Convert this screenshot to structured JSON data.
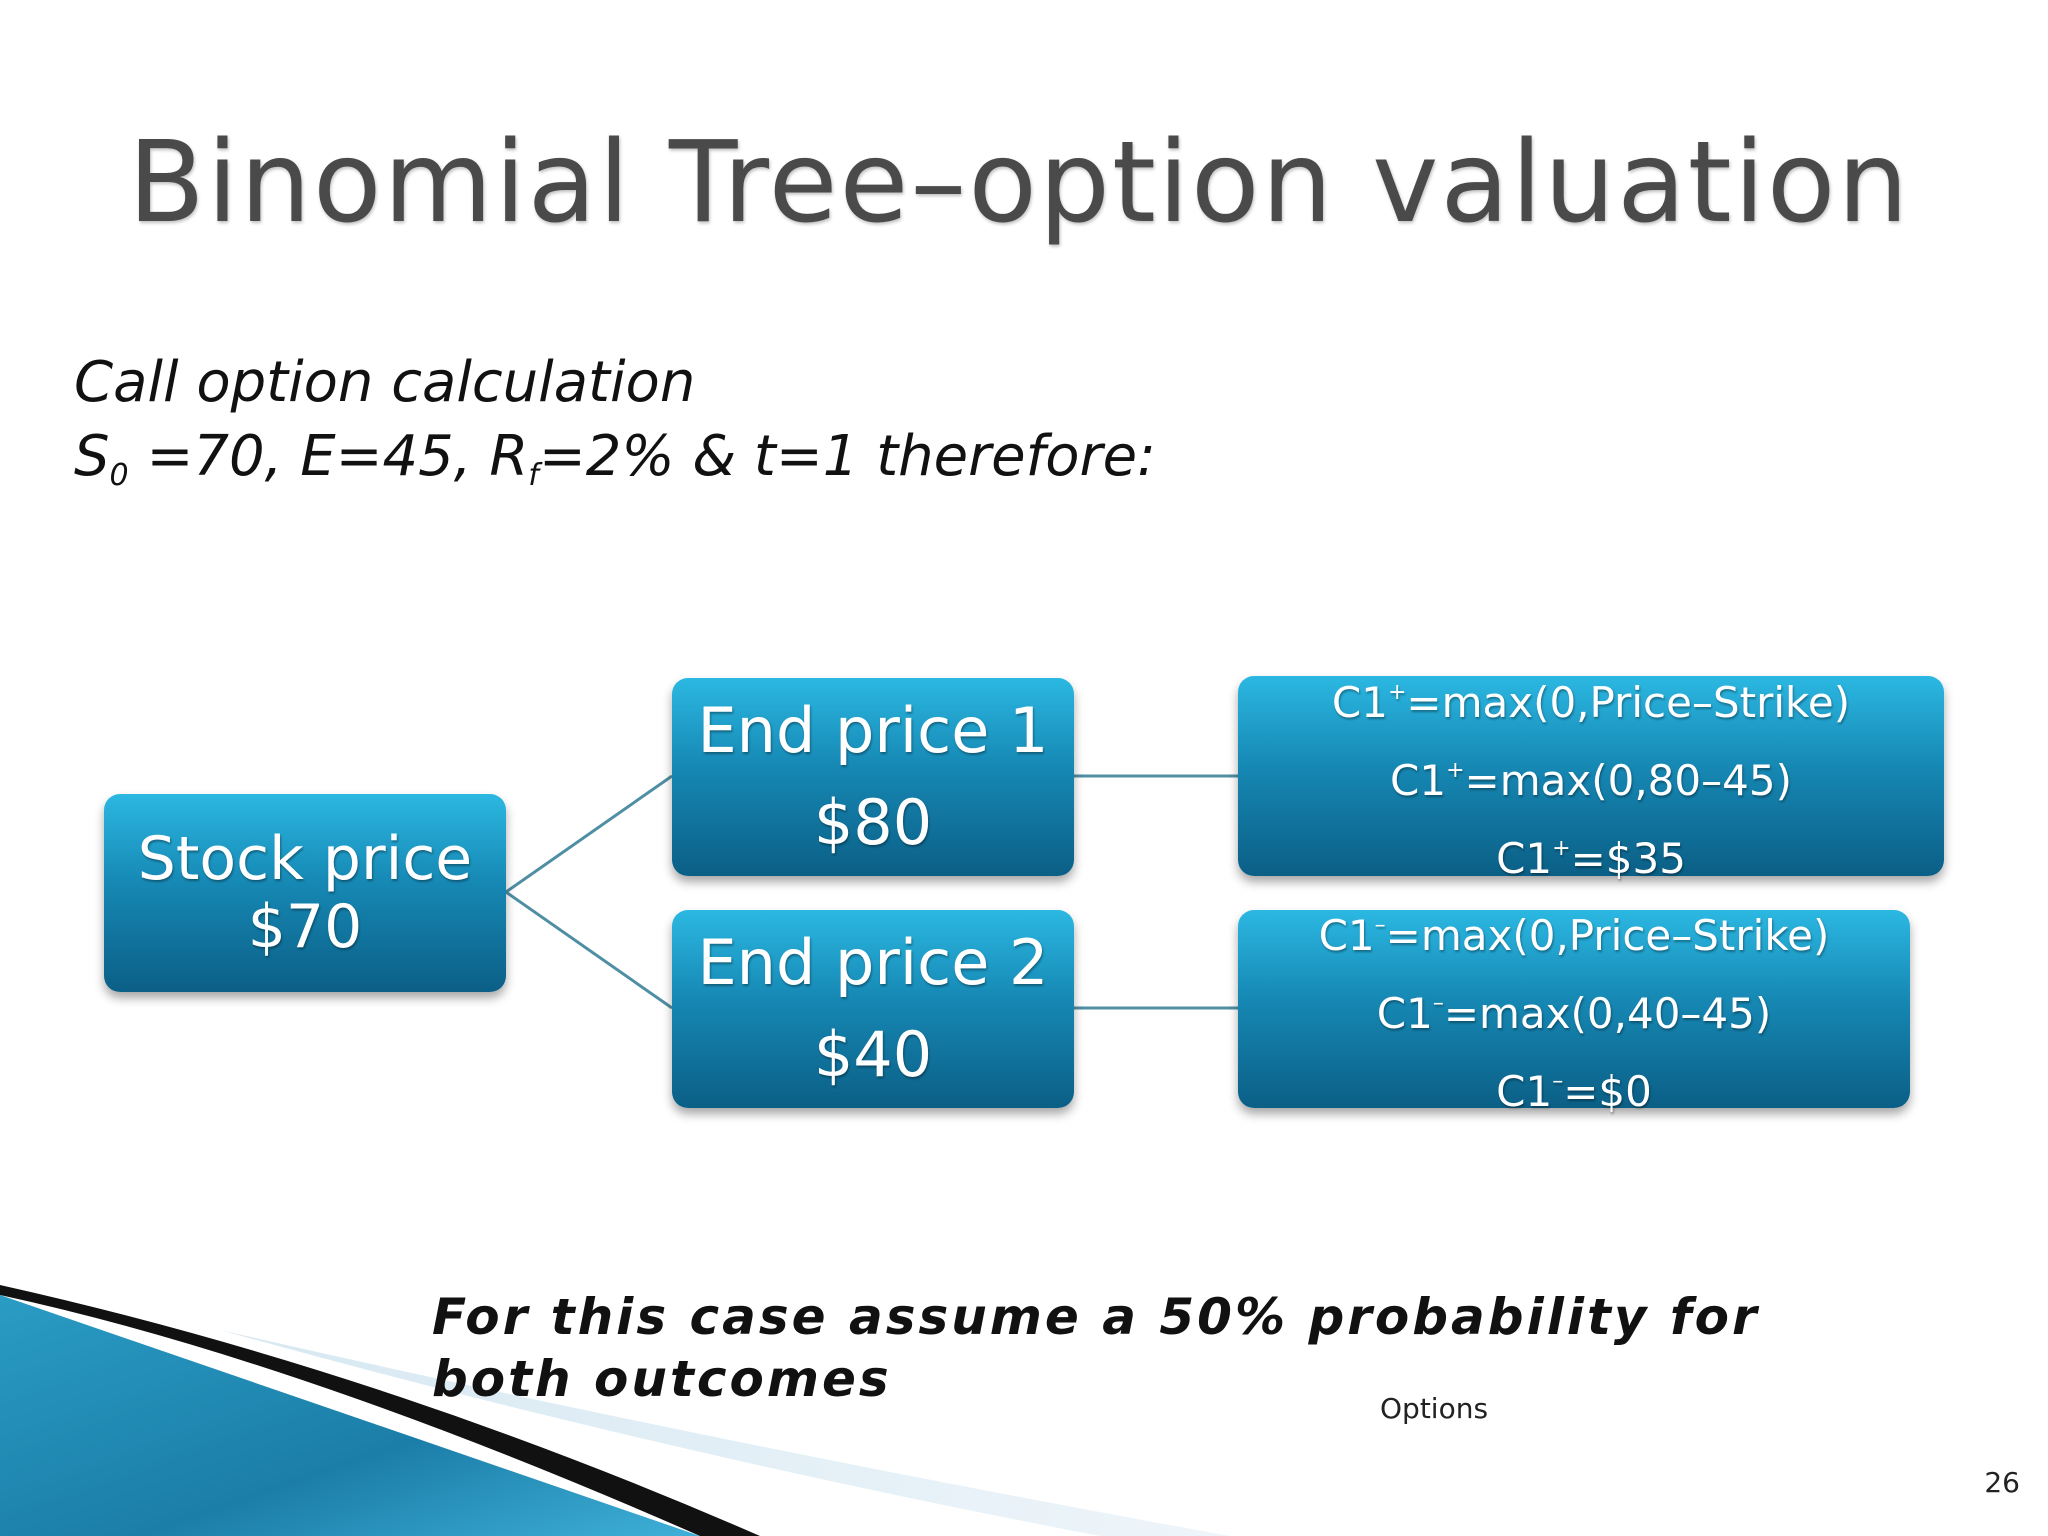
{
  "title": "Binomial Tree–option valuation",
  "subtitle": {
    "line1": "Call option calculation",
    "s_letter": "S",
    "s_sub": "0",
    "part_a": " =70, E=45, R",
    "r_sub": "f",
    "part_b": "=2% & t=1  therefore:"
  },
  "tree": {
    "root": {
      "line1": "Stock price",
      "line2": "$70"
    },
    "up": {
      "line1": "End price 1",
      "line2": "$80"
    },
    "down": {
      "line1": "End price 2",
      "line2": "$40"
    },
    "up_calc": {
      "prefix": "C1",
      "sign": "+",
      "lines": [
        "=max(0,Price–Strike)",
        "=max(0,80–45)",
        "=$35"
      ]
    },
    "down_calc": {
      "prefix": "C1",
      "sign": "–",
      "lines": [
        "=max(0,Price–Strike)",
        "=max(0,40–45)",
        "=$0"
      ]
    }
  },
  "note": "For this case assume a 50% probability for both outcomes",
  "footer": "Options",
  "page_number": "26",
  "colors": {
    "box_top": "#2bb8e2",
    "box_bottom": "#0b5f86",
    "connector": "#4f8fa3"
  }
}
